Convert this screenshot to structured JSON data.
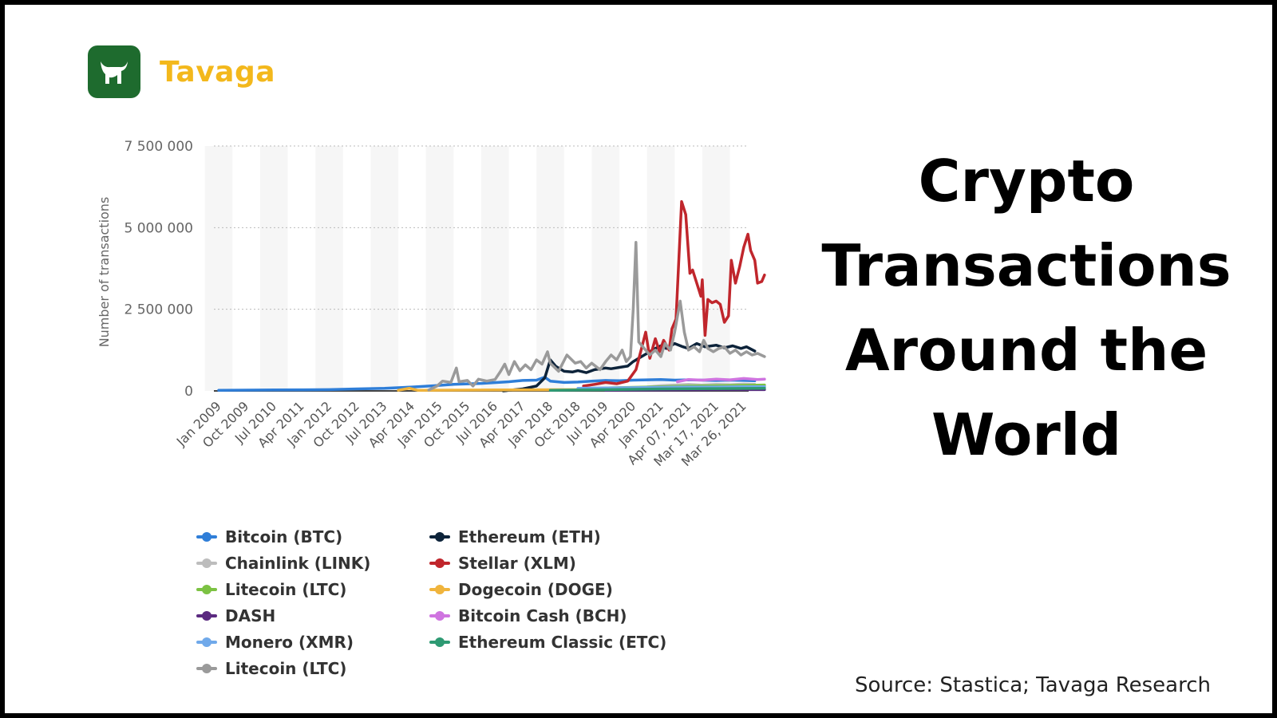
{
  "brand": {
    "name": "Tavaga",
    "accent": "#f3b81c",
    "badge_color": "#1e6b2e"
  },
  "title_lines": [
    "Crypto",
    "Transactions",
    "Around the",
    "World"
  ],
  "source": "Source: Stastica; Tavaga Research",
  "chart_data": {
    "type": "line",
    "title": "",
    "ylabel": "Number of transactions",
    "xlabel": "",
    "ylim": [
      0,
      7500000
    ],
    "yticks": [
      {
        "value": 0,
        "label": "0"
      },
      {
        "value": 2500000,
        "label": "2 500 000"
      },
      {
        "value": 5000000,
        "label": "5 000 000"
      },
      {
        "value": 7500000,
        "label": "7 500 000"
      }
    ],
    "xticks": [
      "Jan 2009",
      "Oct 2009",
      "Jul 2010",
      "Apr 2011",
      "Jan 2012",
      "Oct 2012",
      "Jul 2013",
      "Apr 2014",
      "Jan 2015",
      "Oct 2015",
      "Jul 2016",
      "Apr 2017",
      "Jan 2018",
      "Oct 2018",
      "Jul 2019",
      "Apr 2020",
      "Jan 2021",
      "Apr 07, 2021",
      "Mar 17, 2021",
      "Mar 26, 2021"
    ],
    "grid": "horizontal dotted",
    "legend_position": "bottom",
    "series": [
      {
        "name": "Bitcoin (BTC)",
        "color": "#2f7ed8",
        "points": [
          [
            0,
            20000
          ],
          [
            2,
            30000
          ],
          [
            4,
            40000
          ],
          [
            5,
            60000
          ],
          [
            6,
            80000
          ],
          [
            7,
            120000
          ],
          [
            7.8,
            160000
          ],
          [
            8.5,
            200000
          ],
          [
            9.5,
            230000
          ],
          [
            10.5,
            280000
          ],
          [
            11,
            320000
          ],
          [
            11.5,
            330000
          ],
          [
            11.8,
            420000
          ],
          [
            12,
            300000
          ],
          [
            12.5,
            260000
          ],
          [
            13,
            270000
          ],
          [
            13.5,
            300000
          ],
          [
            14,
            320000
          ],
          [
            14.5,
            310000
          ],
          [
            15,
            330000
          ],
          [
            15.5,
            340000
          ],
          [
            16,
            350000
          ],
          [
            16.5,
            330000
          ],
          [
            17,
            340000
          ],
          [
            17.5,
            330000
          ],
          [
            18,
            320000
          ],
          [
            18.5,
            330000
          ],
          [
            19,
            320000
          ],
          [
            19.4,
            310000
          ]
        ]
      },
      {
        "name": "Ethereum (ETH)",
        "color": "#0d233a",
        "points": [
          [
            10.3,
            0
          ],
          [
            11,
            60000
          ],
          [
            11.5,
            150000
          ],
          [
            11.8,
            400000
          ],
          [
            12,
            950000
          ],
          [
            12.2,
            750000
          ],
          [
            12.5,
            600000
          ],
          [
            12.8,
            580000
          ],
          [
            13,
            620000
          ],
          [
            13.3,
            560000
          ],
          [
            13.6,
            650000
          ],
          [
            14,
            700000
          ],
          [
            14.2,
            680000
          ],
          [
            14.5,
            720000
          ],
          [
            14.8,
            760000
          ],
          [
            15,
            900000
          ],
          [
            15.3,
            1050000
          ],
          [
            15.6,
            1200000
          ],
          [
            15.8,
            1300000
          ],
          [
            16,
            1380000
          ],
          [
            16.2,
            1300000
          ],
          [
            16.5,
            1450000
          ],
          [
            16.8,
            1350000
          ],
          [
            17,
            1300000
          ],
          [
            17.3,
            1450000
          ],
          [
            17.6,
            1350000
          ],
          [
            18,
            1400000
          ],
          [
            18.3,
            1320000
          ],
          [
            18.6,
            1380000
          ],
          [
            18.9,
            1300000
          ],
          [
            19.1,
            1350000
          ],
          [
            19.4,
            1220000
          ]
        ]
      },
      {
        "name": "Chainlink (LINK)",
        "color": "#bdbdbd",
        "points": [
          [
            14.5,
            60000
          ],
          [
            15,
            90000
          ],
          [
            15.5,
            120000
          ],
          [
            16,
            160000
          ],
          [
            16.5,
            180000
          ],
          [
            17,
            200000
          ],
          [
            17.5,
            180000
          ],
          [
            18,
            200000
          ],
          [
            18.5,
            190000
          ],
          [
            19,
            210000
          ],
          [
            19.4,
            200000
          ]
        ]
      },
      {
        "name": "Stellar (XLM)",
        "color": "#c0262c",
        "points": [
          [
            13.2,
            150000
          ],
          [
            13.6,
            200000
          ],
          [
            14,
            260000
          ],
          [
            14.4,
            220000
          ],
          [
            14.8,
            300000
          ],
          [
            15.1,
            650000
          ],
          [
            15.3,
            1300000
          ],
          [
            15.45,
            1800000
          ],
          [
            15.6,
            1000000
          ],
          [
            15.8,
            1600000
          ],
          [
            15.95,
            1200000
          ],
          [
            16.1,
            1550000
          ],
          [
            16.3,
            1250000
          ],
          [
            16.4,
            1900000
          ],
          [
            16.55,
            2200000
          ],
          [
            16.75,
            5800000
          ],
          [
            16.9,
            5400000
          ],
          [
            17.05,
            3600000
          ],
          [
            17.15,
            3700000
          ],
          [
            17.3,
            3300000
          ],
          [
            17.45,
            2900000
          ],
          [
            17.5,
            3400000
          ],
          [
            17.6,
            1700000
          ],
          [
            17.7,
            2800000
          ],
          [
            17.85,
            2700000
          ],
          [
            18,
            2750000
          ],
          [
            18.15,
            2650000
          ],
          [
            18.3,
            2100000
          ],
          [
            18.45,
            2300000
          ],
          [
            18.55,
            4000000
          ],
          [
            18.7,
            3300000
          ],
          [
            18.85,
            3800000
          ],
          [
            19,
            4400000
          ],
          [
            19.15,
            4800000
          ],
          [
            19.25,
            4300000
          ],
          [
            19.4,
            4000000
          ],
          [
            19.5,
            3300000
          ],
          [
            19.65,
            3350000
          ],
          [
            19.75,
            3550000
          ]
        ]
      },
      {
        "name": "Litecoin (LTC)",
        "color": "#7cc243",
        "points": [
          [
            14,
            90000
          ],
          [
            15,
            110000
          ],
          [
            16,
            130000
          ],
          [
            17,
            150000
          ],
          [
            18,
            160000
          ],
          [
            19,
            170000
          ],
          [
            19.75,
            180000
          ]
        ]
      },
      {
        "name": "Dogecoin (DOGE)",
        "color": "#f0b43c",
        "points": [
          [
            6.5,
            20000
          ],
          [
            6.9,
            80000
          ],
          [
            7.2,
            20000
          ],
          [
            10,
            30000
          ],
          [
            13,
            40000
          ],
          [
            16,
            60000
          ],
          [
            18,
            100000
          ],
          [
            19.75,
            110000
          ]
        ]
      },
      {
        "name": "DASH",
        "color": "#5b2a80",
        "points": [
          [
            14,
            20000
          ],
          [
            16,
            30000
          ],
          [
            18,
            40000
          ],
          [
            19.75,
            40000
          ]
        ]
      },
      {
        "name": "Bitcoin Cash (BCH)",
        "color": "#cf74e0",
        "points": [
          [
            16.6,
            280000
          ],
          [
            17,
            350000
          ],
          [
            17.5,
            330000
          ],
          [
            18,
            360000
          ],
          [
            18.5,
            340000
          ],
          [
            19,
            380000
          ],
          [
            19.5,
            350000
          ],
          [
            19.75,
            360000
          ]
        ]
      },
      {
        "name": "Monero (XMR)",
        "color": "#70a9ea",
        "points": [
          [
            13,
            80000
          ],
          [
            14,
            90000
          ],
          [
            15,
            100000
          ],
          [
            16,
            110000
          ],
          [
            17,
            120000
          ],
          [
            18,
            120000
          ],
          [
            19,
            130000
          ],
          [
            19.75,
            130000
          ]
        ]
      },
      {
        "name": "Ethereum Classic (ETC)",
        "color": "#2e9a73",
        "points": [
          [
            12,
            20000
          ],
          [
            14,
            40000
          ],
          [
            16,
            60000
          ],
          [
            18,
            70000
          ],
          [
            19.75,
            80000
          ]
        ]
      },
      {
        "name": "Litecoin (LTC)",
        "color": "#9a9a9a",
        "points": [
          [
            7.6,
            30000
          ],
          [
            7.9,
            150000
          ],
          [
            8.1,
            300000
          ],
          [
            8.4,
            260000
          ],
          [
            8.6,
            700000
          ],
          [
            8.7,
            280000
          ],
          [
            9,
            320000
          ],
          [
            9.2,
            150000
          ],
          [
            9.4,
            360000
          ],
          [
            9.7,
            300000
          ],
          [
            10,
            350000
          ],
          [
            10.2,
            600000
          ],
          [
            10.35,
            820000
          ],
          [
            10.5,
            500000
          ],
          [
            10.7,
            900000
          ],
          [
            10.9,
            620000
          ],
          [
            11.1,
            800000
          ],
          [
            11.3,
            650000
          ],
          [
            11.5,
            950000
          ],
          [
            11.7,
            820000
          ],
          [
            11.9,
            1200000
          ],
          [
            12,
            850000
          ],
          [
            12.3,
            600000
          ],
          [
            12.6,
            1100000
          ],
          [
            12.9,
            850000
          ],
          [
            13.1,
            900000
          ],
          [
            13.3,
            700000
          ],
          [
            13.5,
            850000
          ],
          [
            13.8,
            650000
          ],
          [
            14,
            900000
          ],
          [
            14.2,
            1100000
          ],
          [
            14.4,
            950000
          ],
          [
            14.6,
            1250000
          ],
          [
            14.75,
            900000
          ],
          [
            14.9,
            1050000
          ],
          [
            15,
            2500000
          ],
          [
            15.1,
            4550000
          ],
          [
            15.2,
            1500000
          ],
          [
            15.4,
            1300000
          ],
          [
            15.6,
            1100000
          ],
          [
            15.8,
            1250000
          ],
          [
            16,
            1050000
          ],
          [
            16.15,
            1450000
          ],
          [
            16.35,
            1250000
          ],
          [
            16.5,
            1800000
          ],
          [
            16.7,
            2750000
          ],
          [
            16.85,
            1800000
          ],
          [
            17,
            1250000
          ],
          [
            17.2,
            1350000
          ],
          [
            17.4,
            1200000
          ],
          [
            17.55,
            1550000
          ],
          [
            17.7,
            1300000
          ],
          [
            17.9,
            1200000
          ],
          [
            18.1,
            1300000
          ],
          [
            18.3,
            1350000
          ],
          [
            18.5,
            1150000
          ],
          [
            18.7,
            1250000
          ],
          [
            18.9,
            1100000
          ],
          [
            19.1,
            1200000
          ],
          [
            19.3,
            1100000
          ],
          [
            19.5,
            1150000
          ],
          [
            19.75,
            1050000
          ]
        ]
      }
    ]
  },
  "legend": [
    {
      "label": "Bitcoin (BTC)",
      "color": "#2f7ed8"
    },
    {
      "label": "Ethereum (ETH)",
      "color": "#0d233a"
    },
    {
      "label": "Chainlink (LINK)",
      "color": "#bdbdbd"
    },
    {
      "label": "Stellar (XLM)",
      "color": "#c0262c"
    },
    {
      "label": "Litecoin (LTC)",
      "color": "#7cc243"
    },
    {
      "label": "Dogecoin (DOGE)",
      "color": "#f0b43c"
    },
    {
      "label": "DASH",
      "color": "#5b2a80"
    },
    {
      "label": "Bitcoin Cash (BCH)",
      "color": "#cf74e0"
    },
    {
      "label": "Monero (XMR)",
      "color": "#70a9ea"
    },
    {
      "label": "Ethereum Classic (ETC)",
      "color": "#2e9a73"
    },
    {
      "label": "Litecoin (LTC)",
      "color": "#9a9a9a"
    }
  ]
}
